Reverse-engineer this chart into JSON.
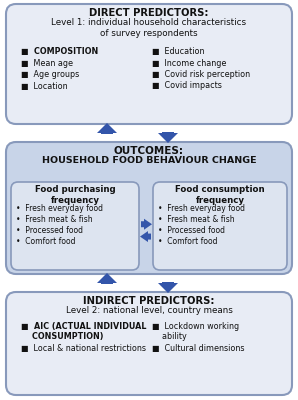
{
  "bg_color": "#ffffff",
  "box_outer_color": "#8899bb",
  "box_fill_light": "#e8ecf5",
  "box_fill_mid": "#c8d4e8",
  "box_fill_inner": "#dde4f0",
  "arrow_color": "#3355aa",
  "text_dark": "#111111",
  "title1_bold": "DIRECT PREDICTORS:",
  "title1_sub": "Level 1: individual household characteristics\nof survey respondents",
  "left_items1": [
    "COMPOSITION",
    "Mean age",
    "Age groups",
    "Location"
  ],
  "left_bold": [
    true,
    false,
    false,
    false
  ],
  "right_items1": [
    "Education",
    "Income change",
    "Covid risk perception",
    "Covid impacts"
  ],
  "title2_bold": "OUTCOMES:",
  "title2_sub": "HOUSEHOLD FOOD BEHAVIOUR CHANGE",
  "box2a_title": "Food purchasing\nfrequency",
  "box2a_items": [
    "Fresh everyday food",
    "Fresh meat & fish",
    "Processed food",
    "Comfort food"
  ],
  "box2b_title": "Food consumption\nfrequency",
  "box2b_items": [
    "Fresh everyday food",
    "Fresh meat & fish",
    "Processed food",
    "Comfort food"
  ],
  "title3_bold": "INDIRECT PREDICTORS:",
  "title3_sub": "Level 2: national level, country means",
  "left_items3_line1": "AIC (ACTUAL INDIVIDUAL",
  "left_items3_line2": "CONSUMPTION)",
  "left_items3_line3": "Local & national restrictions",
  "right_items3_line1": "Lockdown working",
  "right_items3_line2": "ability",
  "right_items3_line3": "Cultural dimensions"
}
